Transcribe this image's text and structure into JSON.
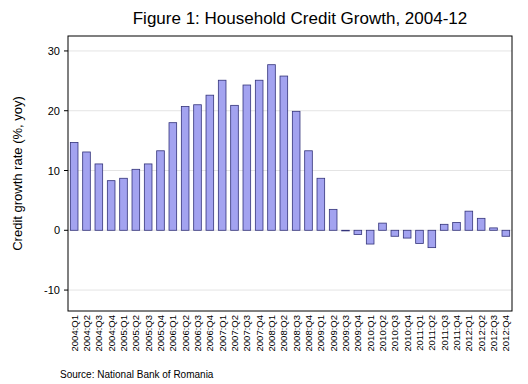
{
  "chart_data": {
    "type": "bar",
    "title": "Figure 1: Household Credit Growth, 2004-12",
    "y_label": "Credit growth rate (%, yoy)",
    "source": "Source: National Bank of Romania",
    "categories": [
      "2004:Q1",
      "2004:Q2",
      "2004:Q3",
      "2004:Q4",
      "2005:Q1",
      "2005:Q2",
      "2005:Q3",
      "2005:Q4",
      "2006:Q1",
      "2006:Q2",
      "2006:Q3",
      "2006:Q4",
      "2007:Q1",
      "2007:Q2",
      "2007:Q3",
      "2007:Q4",
      "2008:Q1",
      "2008:Q2",
      "2008:Q3",
      "2008:Q4",
      "2009:Q1",
      "2009:Q2",
      "2009:Q3",
      "2009:Q4",
      "2010:Q1",
      "2010:Q2",
      "2010:Q3",
      "2010:Q4",
      "2011:Q1",
      "2011:Q2",
      "2011:Q3",
      "2011:Q4",
      "2012:Q1",
      "2012:Q2",
      "2012:Q3",
      "2012:Q4"
    ],
    "values": [
      14.7,
      13.1,
      11.1,
      8.3,
      8.7,
      10.2,
      11.1,
      13.3,
      18.0,
      20.7,
      21.0,
      22.6,
      25.1,
      20.9,
      24.3,
      25.1,
      27.7,
      25.8,
      19.9,
      13.3,
      8.7,
      3.5,
      -0.1,
      -0.7,
      -2.3,
      1.2,
      -1.0,
      -1.3,
      -2.2,
      -2.9,
      1.0,
      1.3,
      3.2,
      2.0,
      0.4,
      -1.0
    ],
    "color": "#a3a3f0",
    "ylim": [
      -13.5,
      32.5
    ],
    "yticks": [
      -10,
      0,
      10,
      20,
      30
    ],
    "grid": true
  }
}
